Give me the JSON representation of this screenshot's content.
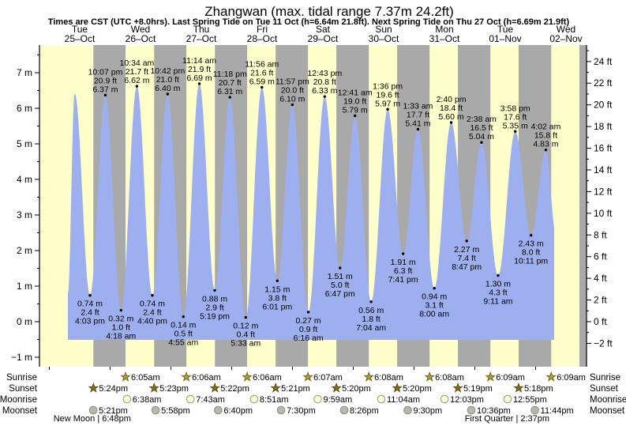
{
  "header": {
    "title": "Zhangwan (max. tidal range 7.37m 24.2ft)",
    "subtitle": "Times are CST (UTC +8.0hrs). Last Spring Tide on Tue 11 Oct (h=6.64m 21.8ft). Next Spring Tide on Thu 27 Oct (h=6.69m 21.9ft)"
  },
  "days": [
    {
      "name": "Tue",
      "date": "25–Oct"
    },
    {
      "name": "Wed",
      "date": "26–Oct"
    },
    {
      "name": "Thu",
      "date": "27–Oct"
    },
    {
      "name": "Fri",
      "date": "28–Oct"
    },
    {
      "name": "Sat",
      "date": "29–Oct"
    },
    {
      "name": "Sun",
      "date": "30–Oct"
    },
    {
      "name": "Mon",
      "date": "31–Oct"
    },
    {
      "name": "Tue",
      "date": "01–Nov"
    },
    {
      "name": "Wed",
      "date": "02–Nov"
    }
  ],
  "chart_data": {
    "type": "area",
    "title": "Zhangwan tide heights",
    "ylabel_left_unit": "m",
    "ylabel_right_unit": "ft",
    "axis_left": {
      "min": -1,
      "max": 7,
      "step": 1,
      "minor_step": 0.5,
      "unit": "m"
    },
    "axis_right": {
      "min": -2,
      "max": 24,
      "step": 2,
      "minor_step": 1,
      "unit": "ft"
    },
    "extremes": [
      {
        "d": 0,
        "t": "10:00 am",
        "m": "6.42",
        "ft": "21.1",
        "type": "high",
        "labeled": false
      },
      {
        "d": 0,
        "t": "4:03 pm",
        "m": "0.74",
        "ft": "2.4",
        "type": "low",
        "labeled": true
      },
      {
        "d": 0,
        "t": "10:07 pm",
        "m": "6.37",
        "ft": "20.9",
        "type": "high",
        "labeled": true
      },
      {
        "d": 1,
        "t": "4:18 am",
        "m": "0.32",
        "ft": "1.0",
        "type": "low",
        "labeled": true
      },
      {
        "d": 1,
        "t": "10:34 am",
        "m": "6.62",
        "ft": "21.7",
        "type": "high",
        "labeled": true
      },
      {
        "d": 1,
        "t": "4:40 pm",
        "m": "0.74",
        "ft": "2.4",
        "type": "low",
        "labeled": true
      },
      {
        "d": 1,
        "t": "10:42 pm",
        "m": "6.40",
        "ft": "21.0",
        "type": "high",
        "labeled": true
      },
      {
        "d": 2,
        "t": "4:55 am",
        "m": "0.14",
        "ft": "0.5",
        "type": "low",
        "labeled": true
      },
      {
        "d": 2,
        "t": "11:14 am",
        "m": "6.69",
        "ft": "21.9",
        "type": "high",
        "labeled": true
      },
      {
        "d": 2,
        "t": "5:19 pm",
        "m": "0.88",
        "ft": "2.9",
        "type": "low",
        "labeled": true
      },
      {
        "d": 2,
        "t": "11:18 pm",
        "m": "6.31",
        "ft": "20.7",
        "type": "high",
        "labeled": true
      },
      {
        "d": 3,
        "t": "5:33 am",
        "m": "0.12",
        "ft": "0.4",
        "type": "low",
        "labeled": true
      },
      {
        "d": 3,
        "t": "11:56 am",
        "m": "6.59",
        "ft": "21.6",
        "type": "high",
        "labeled": true
      },
      {
        "d": 3,
        "t": "6:01 pm",
        "m": "1.15",
        "ft": "3.8",
        "type": "low",
        "labeled": true
      },
      {
        "d": 3,
        "t": "11:57 pm",
        "m": "6.10",
        "ft": "20.0",
        "type": "high",
        "labeled": true
      },
      {
        "d": 4,
        "t": "6:16 am",
        "m": "0.27",
        "ft": "0.9",
        "type": "low",
        "labeled": true
      },
      {
        "d": 4,
        "t": "12:43 pm",
        "m": "6.33",
        "ft": "20.8",
        "type": "high",
        "labeled": true
      },
      {
        "d": 4,
        "t": "6:47 pm",
        "m": "1.51",
        "ft": "5.0",
        "type": "low",
        "labeled": true
      },
      {
        "d": 5,
        "t": "12:41 am",
        "m": "5.79",
        "ft": "19.0",
        "type": "high",
        "labeled": true
      },
      {
        "d": 5,
        "t": "7:04 am",
        "m": "0.56",
        "ft": "1.8",
        "type": "low",
        "labeled": true
      },
      {
        "d": 5,
        "t": "1:36 pm",
        "m": "5.97",
        "ft": "19.6",
        "type": "high",
        "labeled": true
      },
      {
        "d": 5,
        "t": "7:41 pm",
        "m": "1.91",
        "ft": "6.3",
        "type": "low",
        "labeled": true
      },
      {
        "d": 6,
        "t": "1:33 am",
        "m": "5.41",
        "ft": "17.7",
        "type": "high",
        "labeled": true
      },
      {
        "d": 6,
        "t": "8:00 am",
        "m": "0.94",
        "ft": "3.1",
        "type": "low",
        "labeled": true
      },
      {
        "d": 6,
        "t": "2:40 pm",
        "m": "5.60",
        "ft": "18.4",
        "type": "high",
        "labeled": true
      },
      {
        "d": 6,
        "t": "8:47 pm",
        "m": "2.27",
        "ft": "7.4",
        "type": "low",
        "labeled": true
      },
      {
        "d": 7,
        "t": "2:38 am",
        "m": "5.04",
        "ft": "16.5",
        "type": "high",
        "labeled": true
      },
      {
        "d": 7,
        "t": "9:11 am",
        "m": "1.30",
        "ft": "4.3",
        "type": "low",
        "labeled": true
      },
      {
        "d": 7,
        "t": "3:58 pm",
        "m": "5.35",
        "ft": "17.6",
        "type": "high",
        "labeled": true
      },
      {
        "d": 7,
        "t": "10:11 pm",
        "m": "2.43",
        "ft": "8.0",
        "type": "low",
        "labeled": true
      },
      {
        "d": 8,
        "t": "4:02 am",
        "m": "4.83",
        "ft": "15.8",
        "type": "high",
        "labeled": true
      }
    ],
    "curve": {
      "start": {
        "d": 0,
        "t": "7:20 am",
        "m": 0.8
      },
      "cut": {
        "d": 8,
        "t": "7:20 am"
      },
      "virtual_end": {
        "d": 8,
        "t": "7:57 am",
        "m": 2.5
      }
    },
    "trailing_night_start": {
      "d": 8,
      "t": "5:18pm"
    }
  },
  "astro": {
    "rows": [
      {
        "label": "Sunrise",
        "icon": "sunrise-star",
        "entries": [
          {
            "d": 1,
            "t": "6:05am"
          },
          {
            "d": 2,
            "t": "6:06am"
          },
          {
            "d": 3,
            "t": "6:06am"
          },
          {
            "d": 4,
            "t": "6:07am"
          },
          {
            "d": 5,
            "t": "6:08am"
          },
          {
            "d": 6,
            "t": "6:08am"
          },
          {
            "d": 7,
            "t": "6:09am"
          },
          {
            "d": 8,
            "t": "6:09am"
          }
        ]
      },
      {
        "label": "Sunset",
        "icon": "sunset-star",
        "entries": [
          {
            "d": 0,
            "t": "5:24pm"
          },
          {
            "d": 1,
            "t": "5:23pm"
          },
          {
            "d": 2,
            "t": "5:22pm"
          },
          {
            "d": 3,
            "t": "5:21pm"
          },
          {
            "d": 4,
            "t": "5:20pm"
          },
          {
            "d": 5,
            "t": "5:20pm"
          },
          {
            "d": 6,
            "t": "5:19pm"
          },
          {
            "d": 7,
            "t": "5:18pm"
          }
        ]
      },
      {
        "label": "Moonrise",
        "icon": "moonrise-circle",
        "entries": [
          {
            "d": 1,
            "t": "6:38am"
          },
          {
            "d": 2,
            "t": "7:43am"
          },
          {
            "d": 3,
            "t": "8:51am"
          },
          {
            "d": 4,
            "t": "9:59am"
          },
          {
            "d": 5,
            "t": "11:04am"
          },
          {
            "d": 6,
            "t": "12:03pm"
          },
          {
            "d": 7,
            "t": "12:55pm"
          }
        ]
      },
      {
        "label": "Moonset",
        "icon": "moonset-circle",
        "entries": [
          {
            "d": 0,
            "t": "5:21pm"
          },
          {
            "d": 1,
            "t": "5:58pm"
          },
          {
            "d": 2,
            "t": "6:40pm"
          },
          {
            "d": 3,
            "t": "7:30pm"
          },
          {
            "d": 4,
            "t": "8:26pm"
          },
          {
            "d": 5,
            "t": "9:30pm"
          },
          {
            "d": 6,
            "t": "10:36pm"
          },
          {
            "d": 7,
            "t": "11:44pm"
          }
        ]
      }
    ],
    "phases": [
      {
        "label": "New Moon | 6:48pm",
        "d": 0,
        "t": "6:48pm"
      },
      {
        "label": "First Quarter | 2:37pm",
        "d": 7,
        "t": "2:37pm"
      }
    ]
  },
  "colors": {
    "day_band": "#ffffcc",
    "night_band": "#a9a9a9",
    "tide_fill": "#9dafef",
    "day_label_red": "#e53228",
    "axis": "#000000",
    "sunrise_star_fill": "#b3a233",
    "sunrise_star_stroke": "#73650f",
    "sunset_star_fill": "#8a6d1a",
    "sunset_star_stroke": "#5c4a08",
    "moonrise_fill": "#ffffd8",
    "moonrise_stroke": "#9a9a7a",
    "moonset_fill": "#b8b8ac",
    "moonset_stroke": "#8a8a80"
  }
}
